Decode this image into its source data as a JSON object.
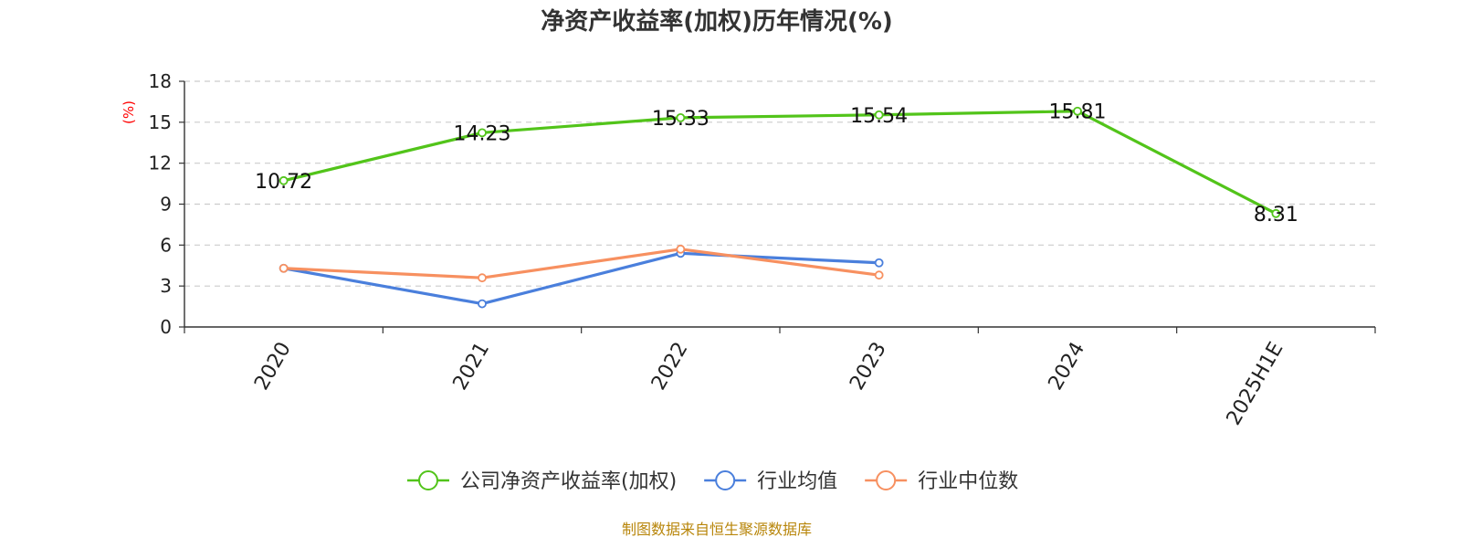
{
  "chart_data": {
    "type": "line",
    "title": "净资产收益率(加权)历年情况(%)",
    "ylabel": "(%)",
    "ylabel_color": "#ff0000",
    "categories": [
      "2020",
      "2021",
      "2022",
      "2023",
      "2024",
      "2025H1E"
    ],
    "ylim": [
      0,
      18
    ],
    "yticks": [
      0,
      3,
      6,
      9,
      12,
      15,
      18
    ],
    "grid": true,
    "legend_position": "bottom-center",
    "series": [
      {
        "name": "公司净资产收益率(加权)",
        "color": "#52c41a",
        "values": [
          10.72,
          14.23,
          15.33,
          15.54,
          15.81,
          8.31
        ],
        "data_labels": true
      },
      {
        "name": "行业均值",
        "color": "#4a7fdc",
        "values": [
          4.3,
          1.7,
          5.4,
          4.7,
          null,
          null
        ],
        "data_labels": false
      },
      {
        "name": "行业中位数",
        "color": "#f79060",
        "values": [
          4.3,
          3.6,
          5.7,
          3.8,
          null,
          null
        ],
        "data_labels": false
      }
    ]
  },
  "footer": {
    "source": "制图数据来自恒生聚源数据库",
    "source_color": "#b8860b"
  }
}
